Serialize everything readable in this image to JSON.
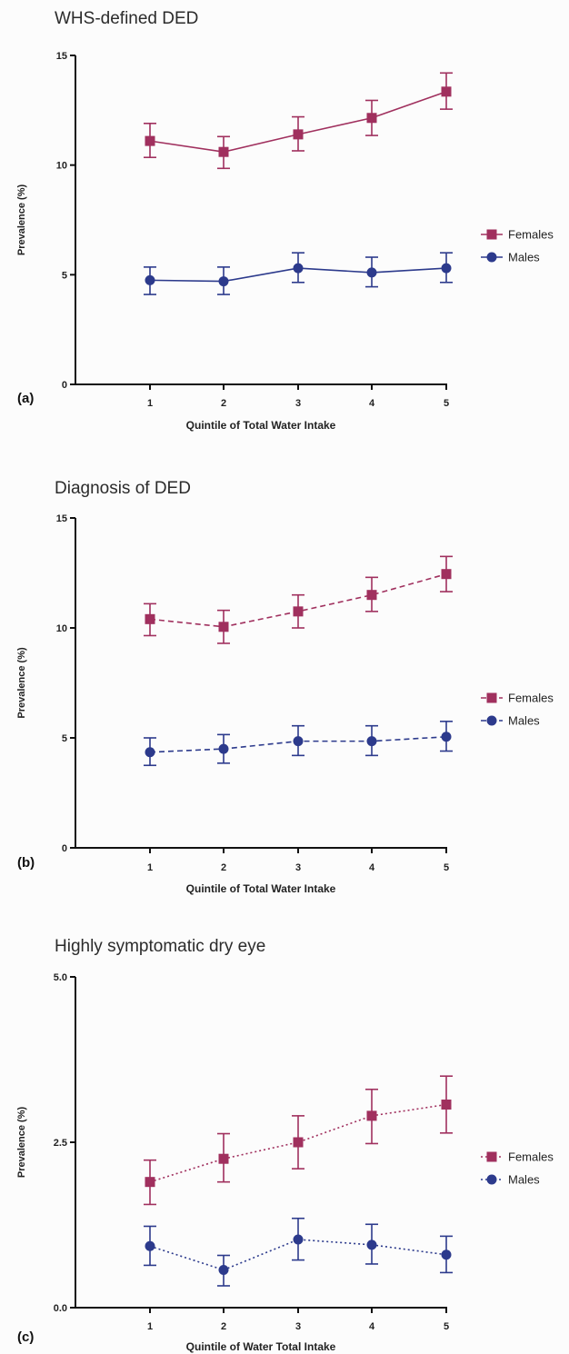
{
  "colors": {
    "Females": "#a0305e",
    "Males": "#2c3a8c"
  },
  "chart_data": [
    {
      "type": "line",
      "panel": "(a)",
      "title": "WHS-defined DED",
      "xlabel": "Quintile of Total Water Intake",
      "ylabel": "Prevalence (%)",
      "ylim": [
        0,
        15
      ],
      "yticks": [
        "0",
        "5",
        "10",
        "15"
      ],
      "categories": [
        "1",
        "2",
        "3",
        "4",
        "5"
      ],
      "line_style": "solid",
      "legend_position": "right",
      "series": [
        {
          "name": "Females",
          "marker": "square",
          "values": [
            11.1,
            10.6,
            11.4,
            12.15,
            13.35
          ],
          "err_low": [
            10.35,
            9.85,
            10.65,
            11.35,
            12.55
          ],
          "err_high": [
            11.9,
            11.3,
            12.2,
            12.95,
            14.2
          ]
        },
        {
          "name": "Males",
          "marker": "circle",
          "values": [
            4.75,
            4.7,
            5.3,
            5.1,
            5.3
          ],
          "err_low": [
            4.1,
            4.1,
            4.65,
            4.45,
            4.65
          ],
          "err_high": [
            5.35,
            5.35,
            6.0,
            5.8,
            6.0
          ]
        }
      ]
    },
    {
      "type": "line",
      "panel": "(b)",
      "title": "Diagnosis of DED",
      "xlabel": "Quintile of Total Water Intake",
      "ylabel": "Prevalence (%)",
      "ylim": [
        0,
        15
      ],
      "yticks": [
        "0",
        "5",
        "10",
        "15"
      ],
      "categories": [
        "1",
        "2",
        "3",
        "4",
        "5"
      ],
      "line_style": "dashed",
      "legend_position": "right",
      "series": [
        {
          "name": "Females",
          "marker": "square",
          "values": [
            10.4,
            10.05,
            10.75,
            11.5,
            12.45
          ],
          "err_low": [
            9.65,
            9.3,
            10.0,
            10.75,
            11.65
          ],
          "err_high": [
            11.1,
            10.8,
            11.5,
            12.3,
            13.25
          ]
        },
        {
          "name": "Males",
          "marker": "circle",
          "values": [
            4.35,
            4.5,
            4.85,
            4.85,
            5.05
          ],
          "err_low": [
            3.75,
            3.85,
            4.2,
            4.2,
            4.4
          ],
          "err_high": [
            5.0,
            5.15,
            5.55,
            5.55,
            5.75
          ]
        }
      ]
    },
    {
      "type": "line",
      "panel": "(c)",
      "title": "Highly symptomatic dry eye",
      "xlabel": "Quintile of Water Total Intake",
      "ylabel": "Prevalence (%)",
      "ylim": [
        0,
        5
      ],
      "yticks": [
        "0.0",
        "2.5",
        "5.0"
      ],
      "categories": [
        "1",
        "2",
        "3",
        "4",
        "5"
      ],
      "line_style": "dotted",
      "legend_position": "right",
      "series": [
        {
          "name": "Females",
          "marker": "square",
          "values": [
            1.9,
            2.25,
            2.5,
            2.9,
            3.07
          ],
          "err_low": [
            1.56,
            1.9,
            2.1,
            2.48,
            2.64
          ],
          "err_high": [
            2.23,
            2.63,
            2.9,
            3.3,
            3.5
          ]
        },
        {
          "name": "Males",
          "marker": "circle",
          "values": [
            0.93,
            0.57,
            1.03,
            0.95,
            0.8
          ],
          "err_low": [
            0.64,
            0.33,
            0.72,
            0.66,
            0.53
          ],
          "err_high": [
            1.23,
            0.79,
            1.35,
            1.26,
            1.08
          ]
        }
      ]
    }
  ]
}
